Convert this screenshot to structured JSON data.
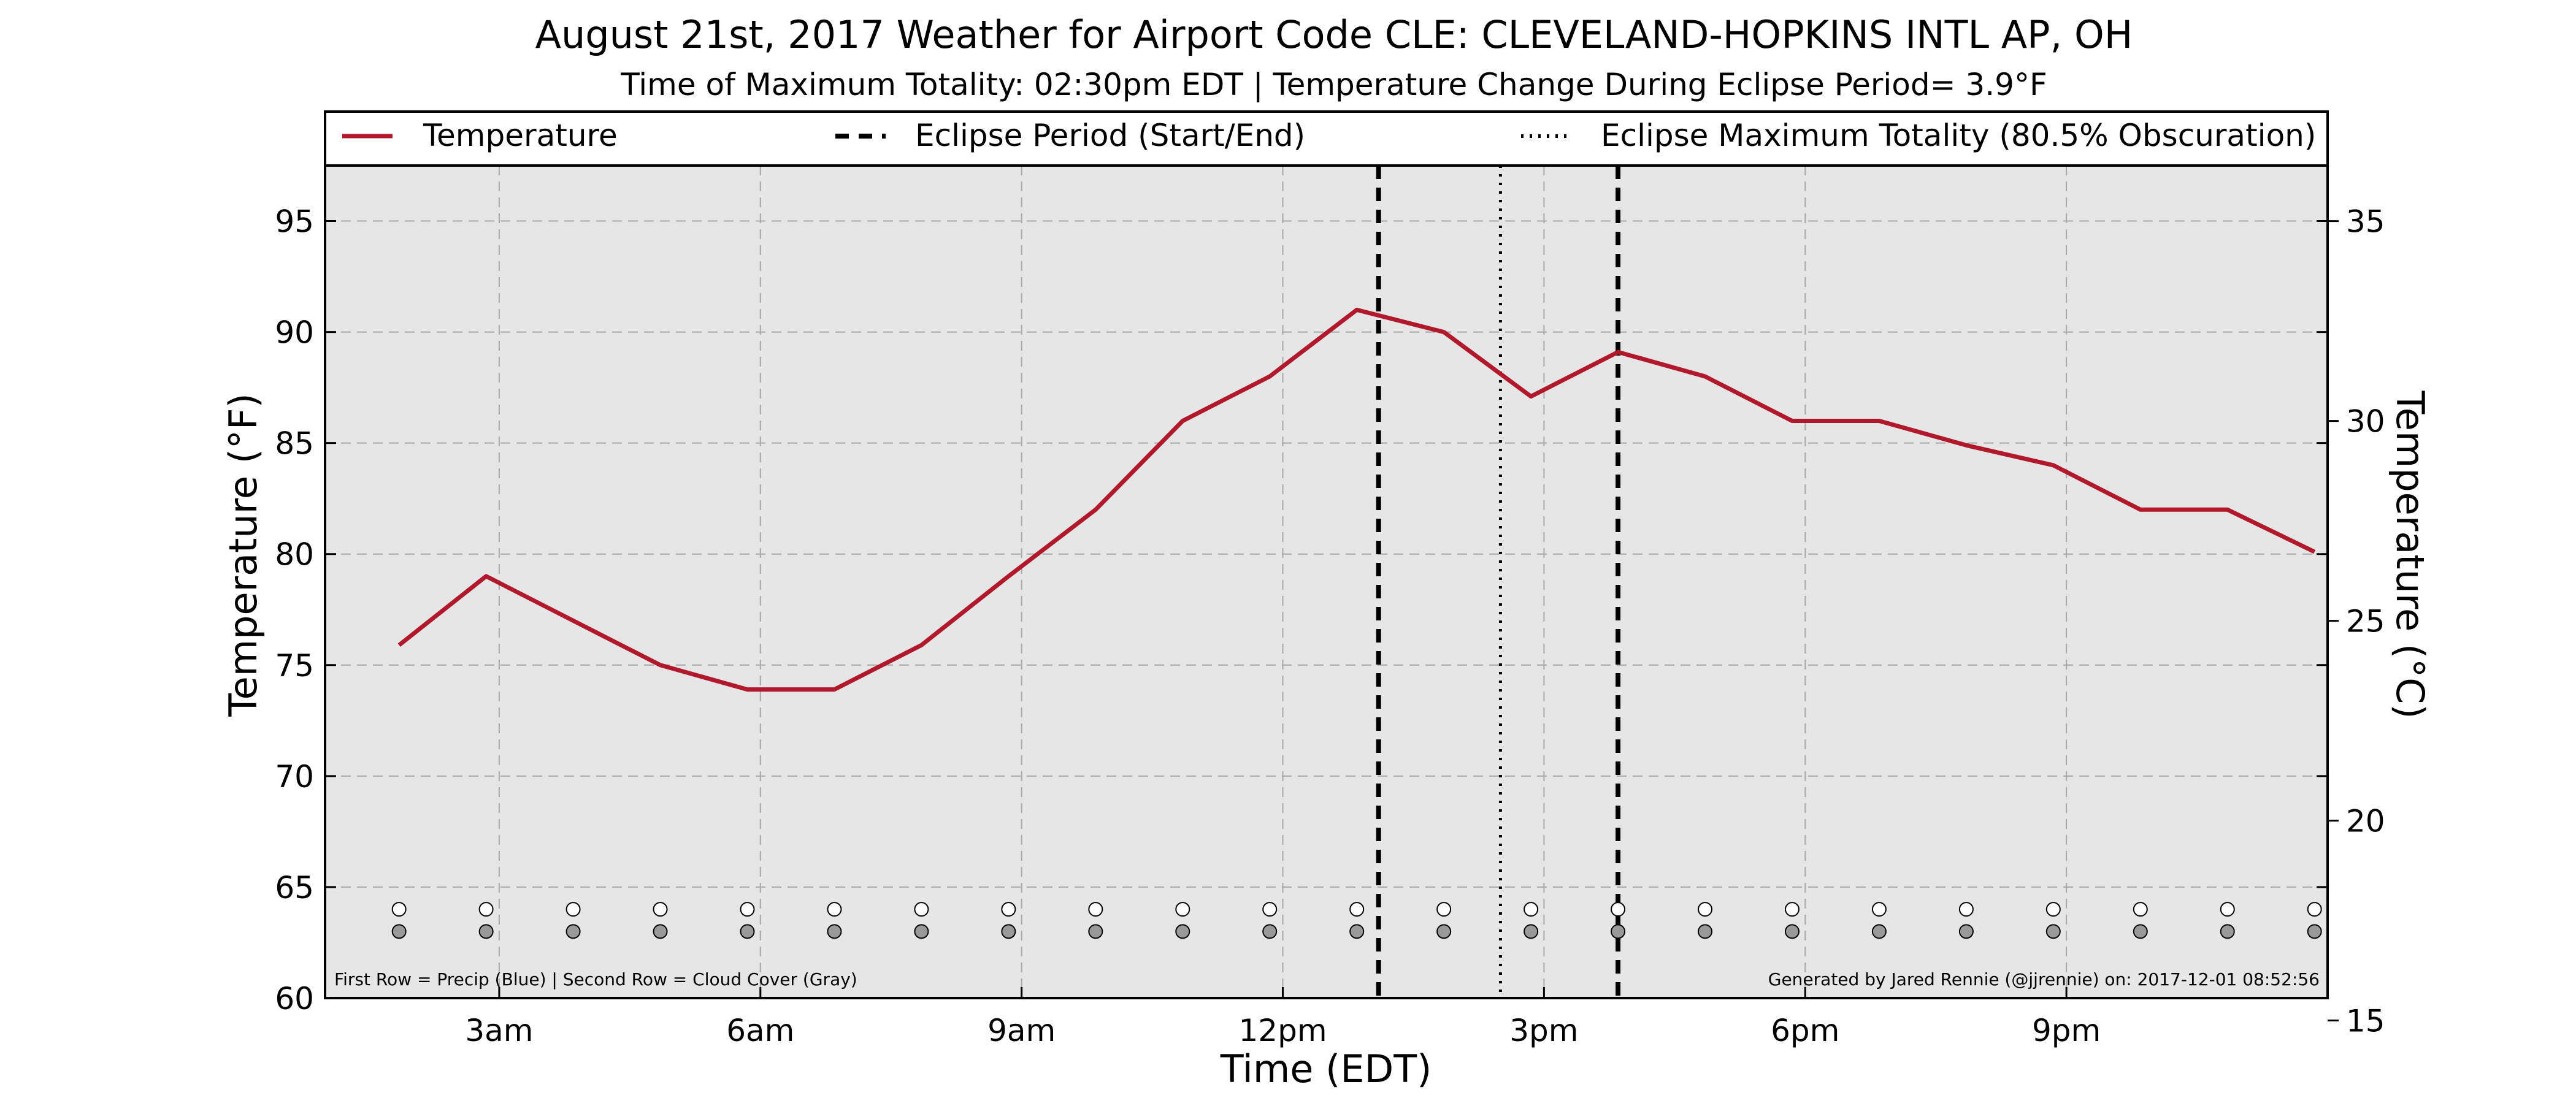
{
  "chart_data": {
    "type": "line",
    "title": "August 21st, 2017 Weather for Airport Code CLE: CLEVELAND-HOPKINS INTL AP, OH",
    "subtitle": "Time of Maximum Totality: 02:30pm EDT | Temperature Change During Eclipse Period= 3.9°F",
    "xlabel": "Time (EDT)",
    "ylabel_left": "Temperature (°F)",
    "ylabel_right": "Temperature (°C)",
    "x_unit": "hour",
    "xlim": [
      1.0,
      24.0
    ],
    "ylim": [
      60,
      97.5
    ],
    "ylim_celsius": [
      15.56,
      36.39
    ],
    "x_ticks": [
      {
        "x": 3,
        "label": "3am"
      },
      {
        "x": 6,
        "label": "6am"
      },
      {
        "x": 9,
        "label": "9am"
      },
      {
        "x": 12,
        "label": "12pm"
      },
      {
        "x": 15,
        "label": "3pm"
      },
      {
        "x": 18,
        "label": "6pm"
      },
      {
        "x": 21,
        "label": "9pm"
      }
    ],
    "y_ticks_left": [
      60,
      65,
      70,
      75,
      80,
      85,
      90,
      95
    ],
    "y_ticks_right": [
      15,
      20,
      25,
      30,
      35
    ],
    "grid": true,
    "legend_position": "top",
    "legend": [
      {
        "label": "Temperature",
        "style": "solid"
      },
      {
        "label": "Eclipse Period (Start/End)",
        "style": "dashed"
      },
      {
        "label": "Eclipse Maximum Totality (80.5% Obscuration)",
        "style": "dotted"
      }
    ],
    "series": [
      {
        "name": "Temperature",
        "color": "#b2182b",
        "x": [
          1.85,
          2.85,
          3.85,
          4.85,
          5.85,
          6.85,
          7.85,
          8.85,
          9.85,
          10.85,
          11.85,
          12.85,
          13.85,
          14.85,
          15.85,
          16.85,
          17.85,
          18.85,
          19.85,
          20.85,
          21.85,
          22.85,
          23.85
        ],
        "y": [
          75.9,
          79.0,
          77.0,
          75.0,
          73.9,
          73.9,
          75.9,
          79.0,
          82.0,
          86.0,
          88.0,
          91.0,
          90.0,
          87.1,
          89.1,
          88.0,
          86.0,
          86.0,
          84.9,
          84.0,
          82.0,
          82.0,
          80.1
        ]
      }
    ],
    "eclipse_start": 13.1,
    "eclipse_end": 15.85,
    "eclipse_max": 14.5,
    "precip_row_x": [
      1.85,
      2.85,
      3.85,
      4.85,
      5.85,
      6.85,
      7.85,
      8.85,
      9.85,
      10.85,
      11.85,
      12.85,
      13.85,
      14.85,
      15.85,
      16.85,
      17.85,
      18.85,
      19.85,
      20.85,
      21.85,
      22.85,
      23.85
    ],
    "precip_row_y": 64,
    "cloud_row_y": 63,
    "annotation_left": "First Row = Precip (Blue) | Second Row = Cloud Cover (Gray)",
    "annotation_right": "Generated by Jared Rennie (@jjrennie) on: 2017-12-01 08:52:56",
    "colors": {
      "temperature": "#b2182b",
      "plot_background": "#e6e6e6",
      "precip_marker": "#ffffff",
      "cloud_marker": "#999999"
    }
  }
}
